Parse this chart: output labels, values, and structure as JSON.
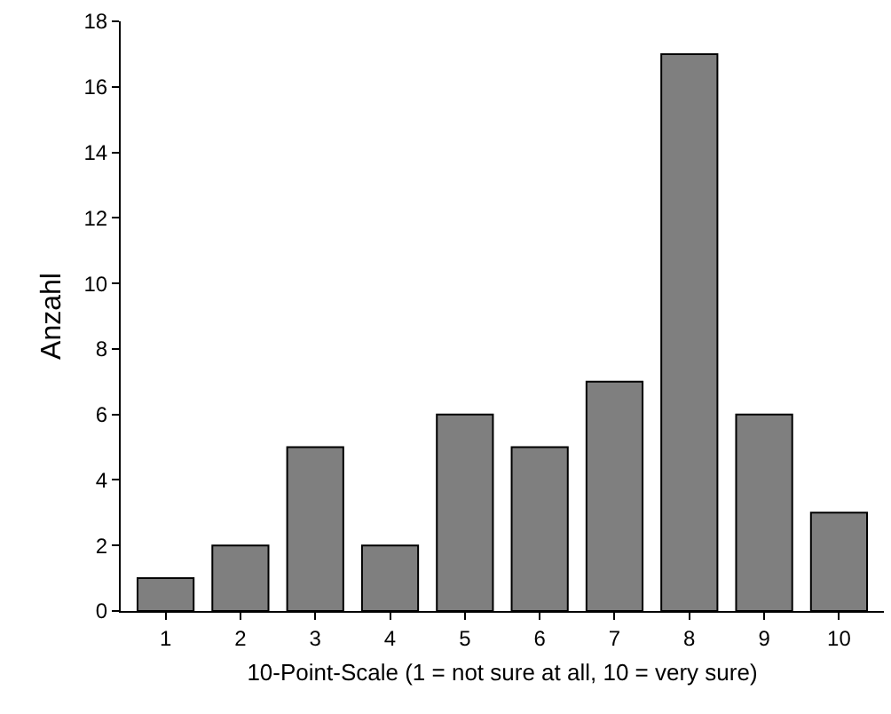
{
  "chart_data": {
    "type": "bar",
    "xlabel": "10-Point-Scale (1 = not sure at all, 10 = very sure)",
    "ylabel": "Anzahl",
    "categories": [
      "1",
      "2",
      "3",
      "4",
      "5",
      "6",
      "7",
      "8",
      "9",
      "10"
    ],
    "values": [
      1,
      2,
      5,
      2,
      6,
      5,
      7,
      17,
      6,
      3
    ],
    "color": "#7f7f7f",
    "ylim": [
      0,
      18
    ],
    "yticks": [
      0,
      2,
      4,
      6,
      8,
      10,
      12,
      14,
      16,
      18
    ]
  }
}
